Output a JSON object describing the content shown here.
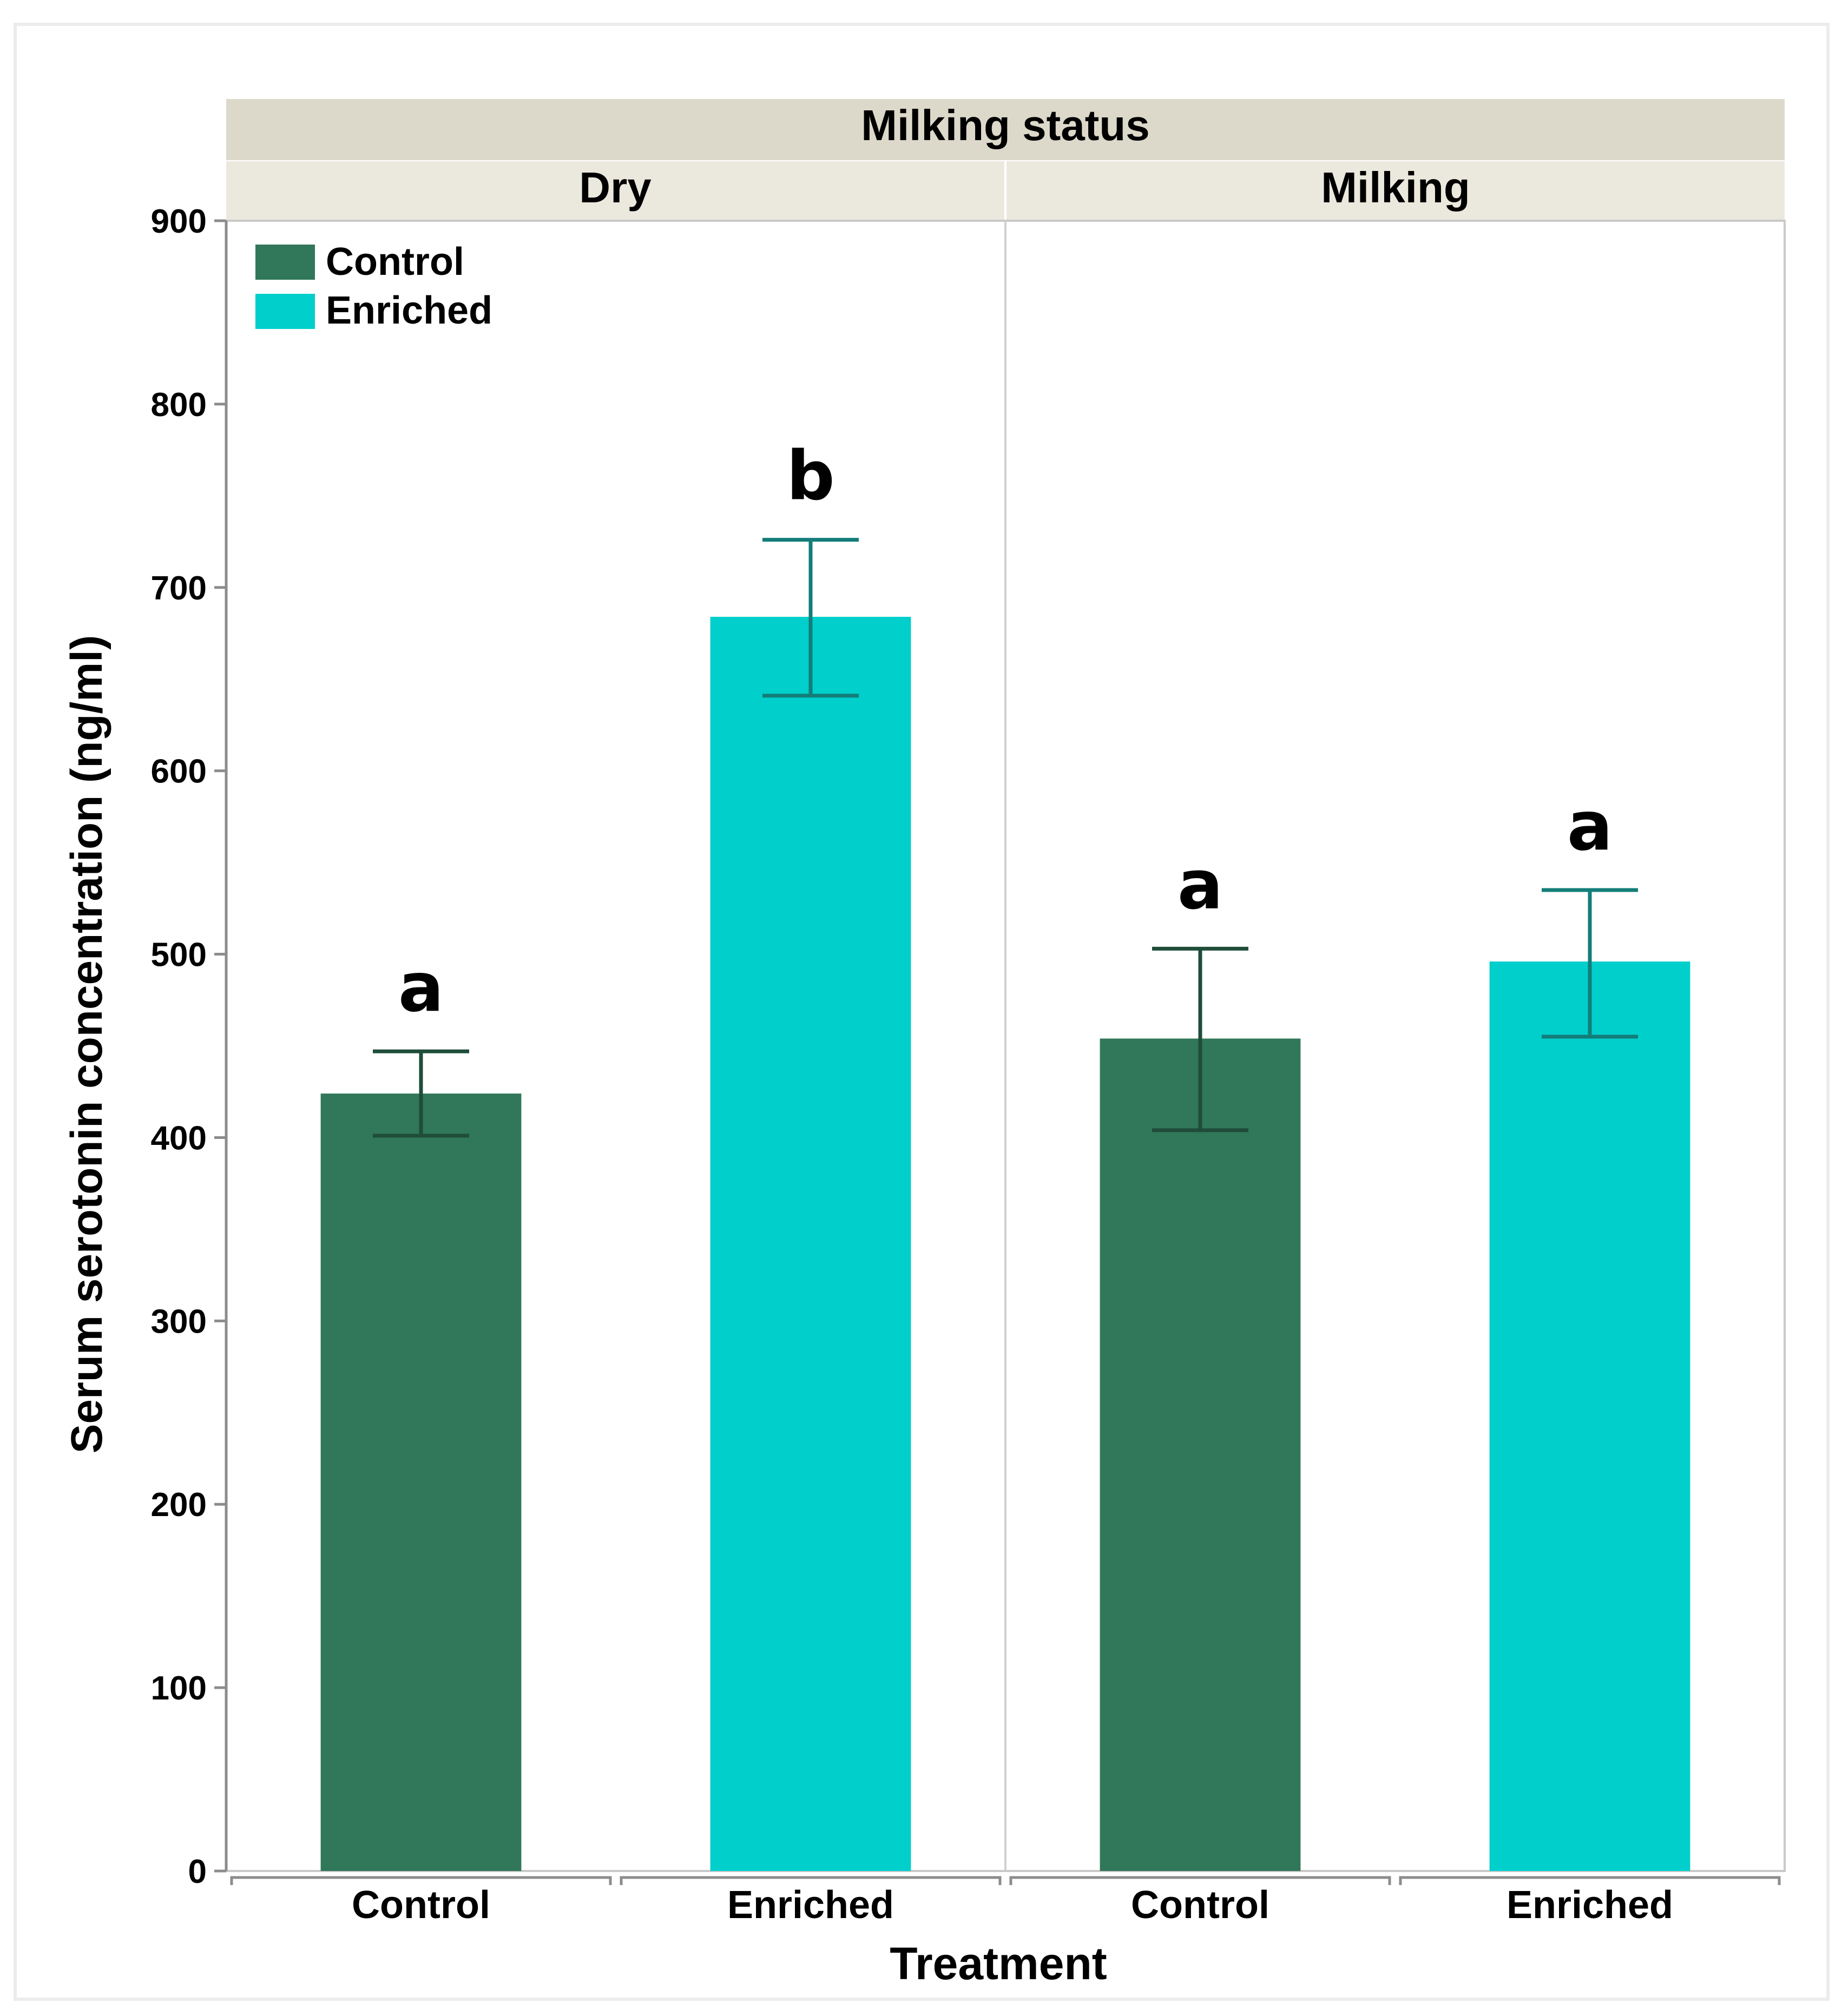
{
  "chart_data": {
    "type": "bar",
    "title": "Milking status",
    "facet_variable": "Milking status",
    "xlabel": "Treatment",
    "ylabel": "Serum serotonin concentration (ng/ml)",
    "ylim": [
      0,
      900
    ],
    "y_ticks": [
      0,
      100,
      200,
      300,
      400,
      500,
      600,
      700,
      800,
      900
    ],
    "grid": false,
    "legend_position": "top-left",
    "legend": [
      {
        "name": "Control",
        "color": "#31775a"
      },
      {
        "name": "Enriched",
        "color": "#00cfcc"
      }
    ],
    "panels": [
      {
        "name": "Dry",
        "categories": [
          "Control",
          "Enriched"
        ],
        "values": [
          424,
          684
        ],
        "error_low": [
          401,
          641
        ],
        "error_high": [
          447,
          726
        ],
        "significance_letters": [
          "a",
          "b"
        ]
      },
      {
        "name": "Milking",
        "categories": [
          "Control",
          "Enriched"
        ],
        "values": [
          454,
          496
        ],
        "error_low": [
          404,
          455
        ],
        "error_high": [
          503,
          535
        ],
        "significance_letters": [
          "a",
          "a"
        ]
      }
    ],
    "colors": {
      "control": "#31775a",
      "enriched": "#00cfcc",
      "control_error": "#1f4d3a",
      "enriched_error": "#137d79",
      "header_top": "#dcd9ca",
      "header_sub": "#ebe9de",
      "frame": "#c9c9c9",
      "axis": "#8c8c8c"
    }
  }
}
